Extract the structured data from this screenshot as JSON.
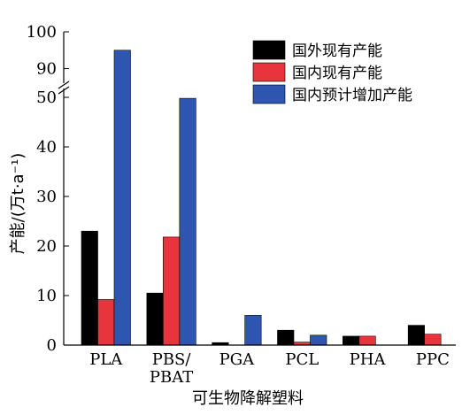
{
  "chart_data": {
    "type": "bar",
    "categories": [
      "PLA",
      "PBS/\nPBAT",
      "PGA",
      "PCL",
      "PHA",
      "PPC"
    ],
    "category_lines": [
      [
        "PLA"
      ],
      [
        "PBS/",
        "PBAT"
      ],
      [
        "PGA"
      ],
      [
        "PCL"
      ],
      [
        "PHA"
      ],
      [
        "PPC"
      ]
    ],
    "series": [
      {
        "name": "国外现有产能",
        "color": "#000000",
        "values": [
          23,
          10.5,
          0.5,
          3,
          1.8,
          4
        ]
      },
      {
        "name": "国内现有产能",
        "color": "#e8343c",
        "values": [
          9.2,
          21.8,
          0,
          0.6,
          1.8,
          2.2
        ]
      },
      {
        "name": "国内预计增加产能",
        "color": "#2e56b0",
        "values": [
          95,
          49.8,
          6,
          2,
          0,
          0
        ]
      }
    ],
    "xlabel": "可生物降解塑料",
    "ylabel": "产能/(万t·a⁻¹)",
    "ylim": [
      0,
      100
    ],
    "axis_break": {
      "lower": [
        0,
        52
      ],
      "upper": [
        87,
        100
      ]
    },
    "yticks_lower": [
      0,
      10,
      20,
      30,
      40,
      50
    ],
    "yticks_upper": [
      90,
      100
    ],
    "ytick_labels_lower": [
      "0",
      "10",
      "20",
      "30",
      "40",
      "50"
    ],
    "ytick_labels_upper": [
      "90",
      "100"
    ],
    "legend_position": "top-right",
    "grid": false
  }
}
